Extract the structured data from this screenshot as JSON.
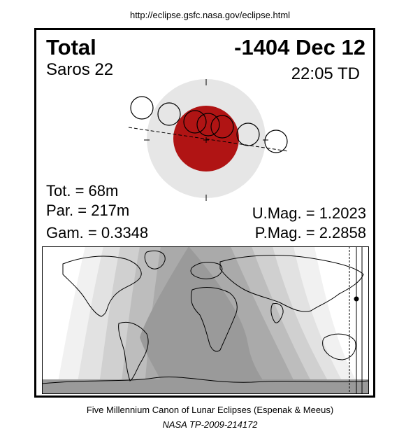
{
  "source_url": "http://eclipse.gsfc.nasa.gov/eclipse.html",
  "eclipse": {
    "type": "Total",
    "date": "-1404 Dec 12",
    "saros": "Saros  22",
    "time": "22:05 TD",
    "total_duration": "Tot. =  68m",
    "partial_duration": "Par. = 217m",
    "gamma": "Gam. = 0.3348",
    "umbral_magnitude": "U.Mag. = 1.2023",
    "penumbral_magnitude": "P.Mag. = 2.2858"
  },
  "colors": {
    "penumbra": "#e6e6e6",
    "umbra": "#b01414",
    "map_night": "#9a9a9a"
  },
  "footer": {
    "line1": "Five Millennium Canon of Lunar Eclipses (Espenak & Meeus)",
    "line2": "NASA TP-2009-214172"
  }
}
